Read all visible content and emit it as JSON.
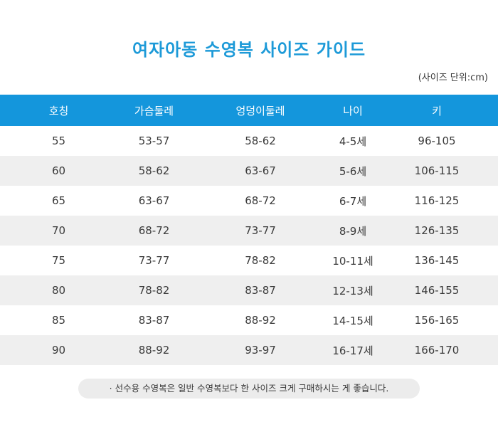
{
  "title": "여자아동 수영복 사이즈  가이드",
  "unit_note": "(사이즈 단위:cm)",
  "table": {
    "headers": [
      "호칭",
      "가슴둘레",
      "엉덩이둘레",
      "나이",
      "키"
    ],
    "rows": [
      [
        "55",
        "53-57",
        "58-62",
        "4-5세",
        "96-105"
      ],
      [
        "60",
        "58-62",
        "63-67",
        "5-6세",
        "106-115"
      ],
      [
        "65",
        "63-67",
        "68-72",
        "6-7세",
        "116-125"
      ],
      [
        "70",
        "68-72",
        "73-77",
        "8-9세",
        "126-135"
      ],
      [
        "75",
        "73-77",
        "78-82",
        "10-11세",
        "136-145"
      ],
      [
        "80",
        "78-82",
        "83-87",
        "12-13세",
        "146-155"
      ],
      [
        "85",
        "83-87",
        "88-92",
        "14-15세",
        "156-165"
      ],
      [
        "90",
        "88-92",
        "93-97",
        "16-17세",
        "166-170"
      ]
    ]
  },
  "footnote": "· 선수용 수영복은 일반 수영복보다 한 사이즈 크게 구매하시는 게 좋습니다.",
  "colors": {
    "title": "#1d9ad8",
    "header_bg": "#1496dc",
    "stripe_bg": "#efefef",
    "note_bg": "#ececec"
  }
}
